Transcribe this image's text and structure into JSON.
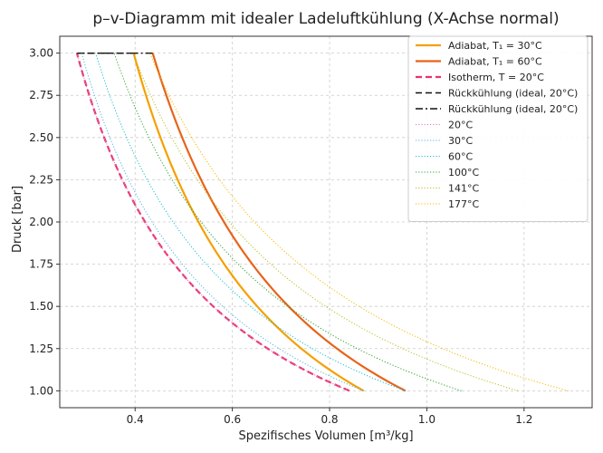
{
  "chart_data": {
    "type": "line",
    "title": "p–v-Diagramm mit idealer Ladeluftkühlung (X-Achse normal)",
    "xlabel": "Spezifisches Volumen [m³/kg]",
    "ylabel": "Druck [bar]",
    "xlim": [
      0.245,
      1.34
    ],
    "ylim": [
      0.9,
      3.1
    ],
    "xticks": [
      0.4,
      0.6,
      0.8,
      1.0,
      1.2
    ],
    "xtick_labels": [
      "0.4",
      "0.6",
      "0.8",
      "1.0",
      "1.2"
    ],
    "yticks": [
      1.0,
      1.25,
      1.5,
      1.75,
      2.0,
      2.25,
      2.5,
      2.75,
      3.0
    ],
    "ytick_labels": [
      "1.00",
      "1.25",
      "1.50",
      "1.75",
      "2.00",
      "2.25",
      "2.50",
      "2.75",
      "3.00"
    ],
    "grid": true,
    "legend_position": "top-right",
    "series": [
      {
        "name": "Adiabat, T₁ = 30°C",
        "kind": "adiabat",
        "v_at_1bar": 0.87,
        "p_range": [
          1.0,
          3.0
        ],
        "color": "#f5a000",
        "style": "solid"
      },
      {
        "name": "Adiabat, T₁ = 60°C",
        "kind": "adiabat",
        "v_at_1bar": 0.956,
        "p_range": [
          1.0,
          3.0
        ],
        "color": "#e8631a",
        "style": "solid"
      },
      {
        "name": "Isotherm, T = 20°C",
        "kind": "isotherm",
        "v_at_1bar": 0.841,
        "p_range": [
          1.0,
          3.0
        ],
        "color": "#e8336d",
        "style": "dashed"
      },
      {
        "name": "Rückkühlung (ideal, 20°C)",
        "kind": "segment",
        "x": [
          0.397,
          0.28
        ],
        "y": [
          3.0,
          3.0
        ],
        "color": "#111111",
        "style": "dashed"
      },
      {
        "name": "Rückkühlung (ideal, 20°C)",
        "kind": "segment",
        "x": [
          0.436,
          0.28
        ],
        "y": [
          3.0,
          3.0
        ],
        "color": "#111111",
        "style": "dashdot"
      },
      {
        "name": "20°C",
        "kind": "isotherm",
        "v_at_1bar": 0.841,
        "p_range": [
          1.0,
          3.0
        ],
        "color": "#e377c2",
        "style": "dotted"
      },
      {
        "name": "30°C",
        "kind": "isotherm",
        "v_at_1bar": 0.87,
        "p_range": [
          1.0,
          3.0
        ],
        "color": "#4fb3e8",
        "style": "dotted"
      },
      {
        "name": "60°C",
        "kind": "isotherm",
        "v_at_1bar": 0.956,
        "p_range": [
          1.0,
          3.0
        ],
        "color": "#17becf",
        "style": "dotted"
      },
      {
        "name": "100°C",
        "kind": "isotherm",
        "v_at_1bar": 1.071,
        "p_range": [
          1.0,
          3.0
        ],
        "color": "#2ca02c",
        "style": "dotted"
      },
      {
        "name": "141°C",
        "kind": "isotherm",
        "v_at_1bar": 1.188,
        "p_range": [
          1.0,
          3.0
        ],
        "color": "#bcbd22",
        "style": "dotted"
      },
      {
        "name": "177°C",
        "kind": "isotherm",
        "v_at_1bar": 1.291,
        "p_range": [
          1.0,
          3.0
        ],
        "color": "#f5b800",
        "style": "dotted"
      }
    ]
  }
}
